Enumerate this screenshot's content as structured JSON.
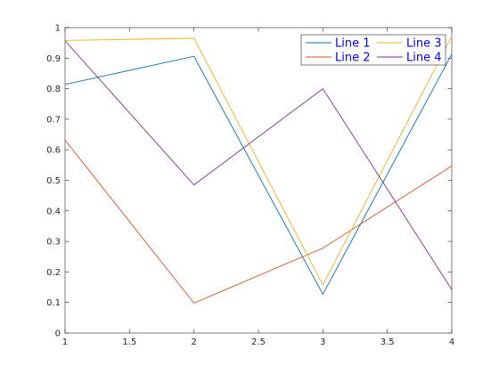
{
  "chart_data": {
    "type": "line",
    "x": [
      1,
      2,
      3,
      4
    ],
    "xlim": [
      1,
      4
    ],
    "ylim": [
      0,
      1
    ],
    "xticks": [
      1,
      1.5,
      2,
      2.5,
      3,
      3.5,
      4
    ],
    "xtick_labels": [
      "1",
      "1.5",
      "2",
      "2.5",
      "3",
      "3.5",
      "4"
    ],
    "yticks": [
      0,
      0.1,
      0.2,
      0.3,
      0.4,
      0.5,
      0.6,
      0.7,
      0.8,
      0.9,
      1
    ],
    "ytick_labels": [
      "0",
      "0.1",
      "0.2",
      "0.3",
      "0.4",
      "0.5",
      "0.6",
      "0.7",
      "0.8",
      "0.9",
      "1"
    ],
    "grid": false,
    "legend_position": "top-right",
    "legend_columns": 2,
    "series": [
      {
        "name": "Line 1",
        "color": "#0072BD",
        "values": [
          0.814,
          0.906,
          0.127,
          0.913
        ]
      },
      {
        "name": "Line 2",
        "color": "#D95319",
        "values": [
          0.632,
          0.098,
          0.278,
          0.547
        ]
      },
      {
        "name": "Line 3",
        "color": "#EDB120",
        "values": [
          0.958,
          0.965,
          0.158,
          0.971
        ]
      },
      {
        "name": "Line 4",
        "color": "#7E2F8E",
        "values": [
          0.957,
          0.485,
          0.8,
          0.142
        ]
      }
    ]
  }
}
